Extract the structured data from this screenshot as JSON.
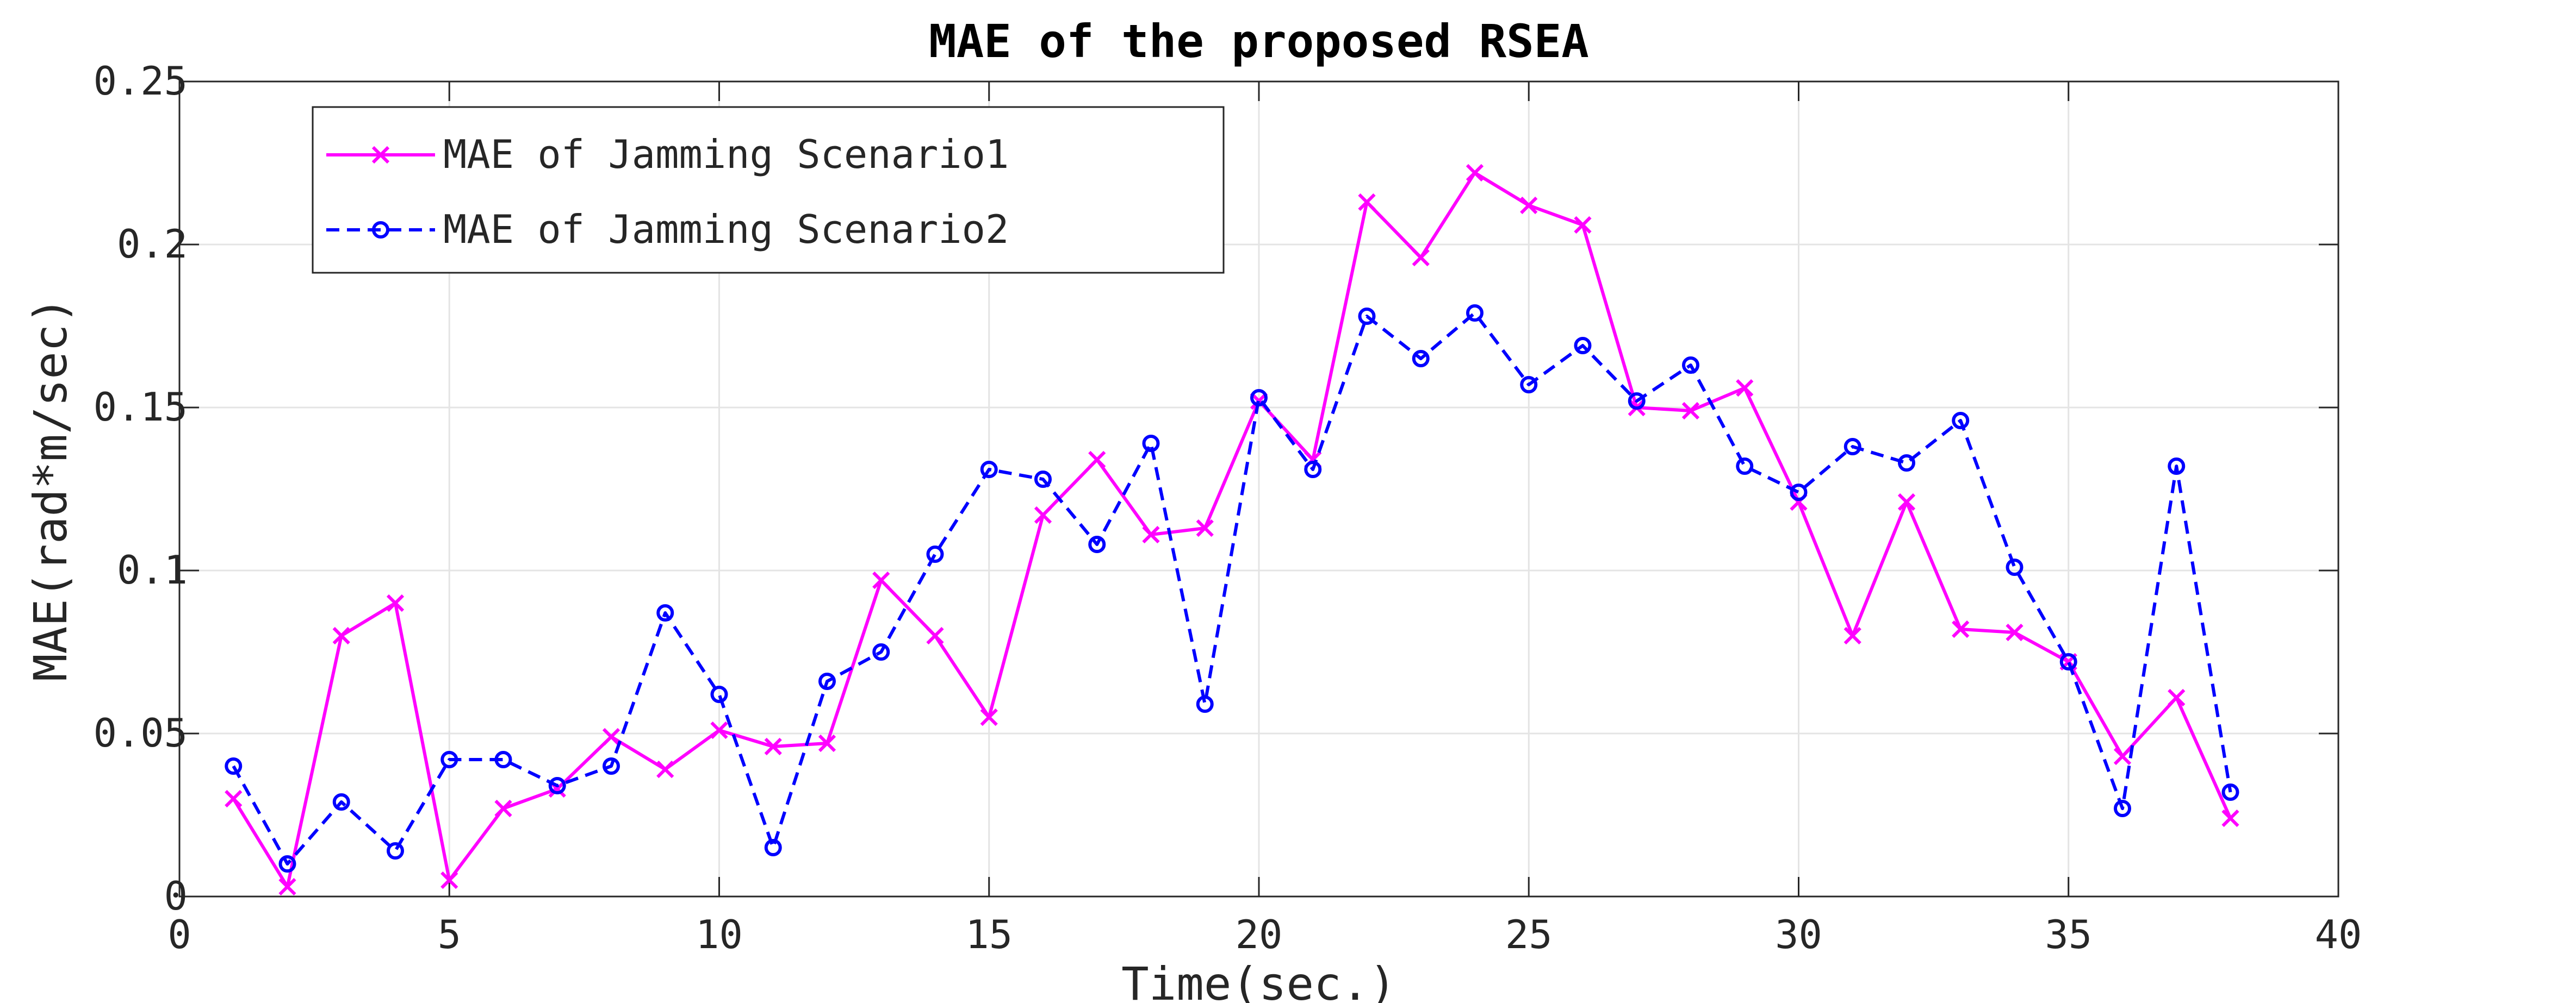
{
  "chart_data": {
    "type": "line",
    "title": "MAE of the proposed RSEA",
    "xlabel": "Time(sec.)",
    "ylabel": "MAE(rad*m/sec)",
    "xlim": [
      0,
      40
    ],
    "ylim": [
      0,
      0.25
    ],
    "xticks": [
      0,
      5,
      10,
      15,
      20,
      25,
      30,
      35,
      40
    ],
    "xtick_labels": [
      "0",
      "5",
      "10",
      "15",
      "20",
      "25",
      "30",
      "35",
      "40"
    ],
    "yticks": [
      0,
      0.05,
      0.1,
      0.15,
      0.2,
      0.25
    ],
    "ytick_labels": [
      "0",
      "0.05",
      "0.1",
      "0.15",
      "0.2",
      "0.25"
    ],
    "grid": true,
    "legend_position": "top-left",
    "x": [
      1,
      2,
      3,
      4,
      5,
      6,
      7,
      8,
      9,
      10,
      11,
      12,
      13,
      14,
      15,
      16,
      17,
      18,
      19,
      20,
      21,
      22,
      23,
      24,
      25,
      26,
      27,
      28,
      29,
      30,
      31,
      32,
      33,
      34,
      35,
      36,
      37,
      38
    ],
    "series": [
      {
        "name": "MAE of Jamming Scenario1",
        "color": "#ff00ff",
        "line_style": "solid",
        "marker": "x",
        "values": [
          0.03,
          0.003,
          0.08,
          0.09,
          0.005,
          0.027,
          0.033,
          0.049,
          0.039,
          0.051,
          0.046,
          0.047,
          0.097,
          0.08,
          0.055,
          0.117,
          0.134,
          0.111,
          0.113,
          0.152,
          0.134,
          0.213,
          0.196,
          0.222,
          0.212,
          0.206,
          0.15,
          0.149,
          0.156,
          0.121,
          0.08,
          0.121,
          0.082,
          0.081,
          0.072,
          0.043,
          0.061,
          0.024
        ]
      },
      {
        "name": "MAE of Jamming Scenario2",
        "color": "#0000ff",
        "line_style": "dashed",
        "marker": "o",
        "values": [
          0.04,
          0.01,
          0.029,
          0.014,
          0.042,
          0.042,
          0.034,
          0.04,
          0.087,
          0.062,
          0.015,
          0.066,
          0.075,
          0.105,
          0.131,
          0.128,
          0.108,
          0.139,
          0.059,
          0.153,
          0.131,
          0.178,
          0.165,
          0.179,
          0.157,
          0.169,
          0.152,
          0.163,
          0.132,
          0.124,
          0.138,
          0.133,
          0.146,
          0.101,
          0.072,
          0.027,
          0.132,
          0.032
        ]
      }
    ]
  }
}
